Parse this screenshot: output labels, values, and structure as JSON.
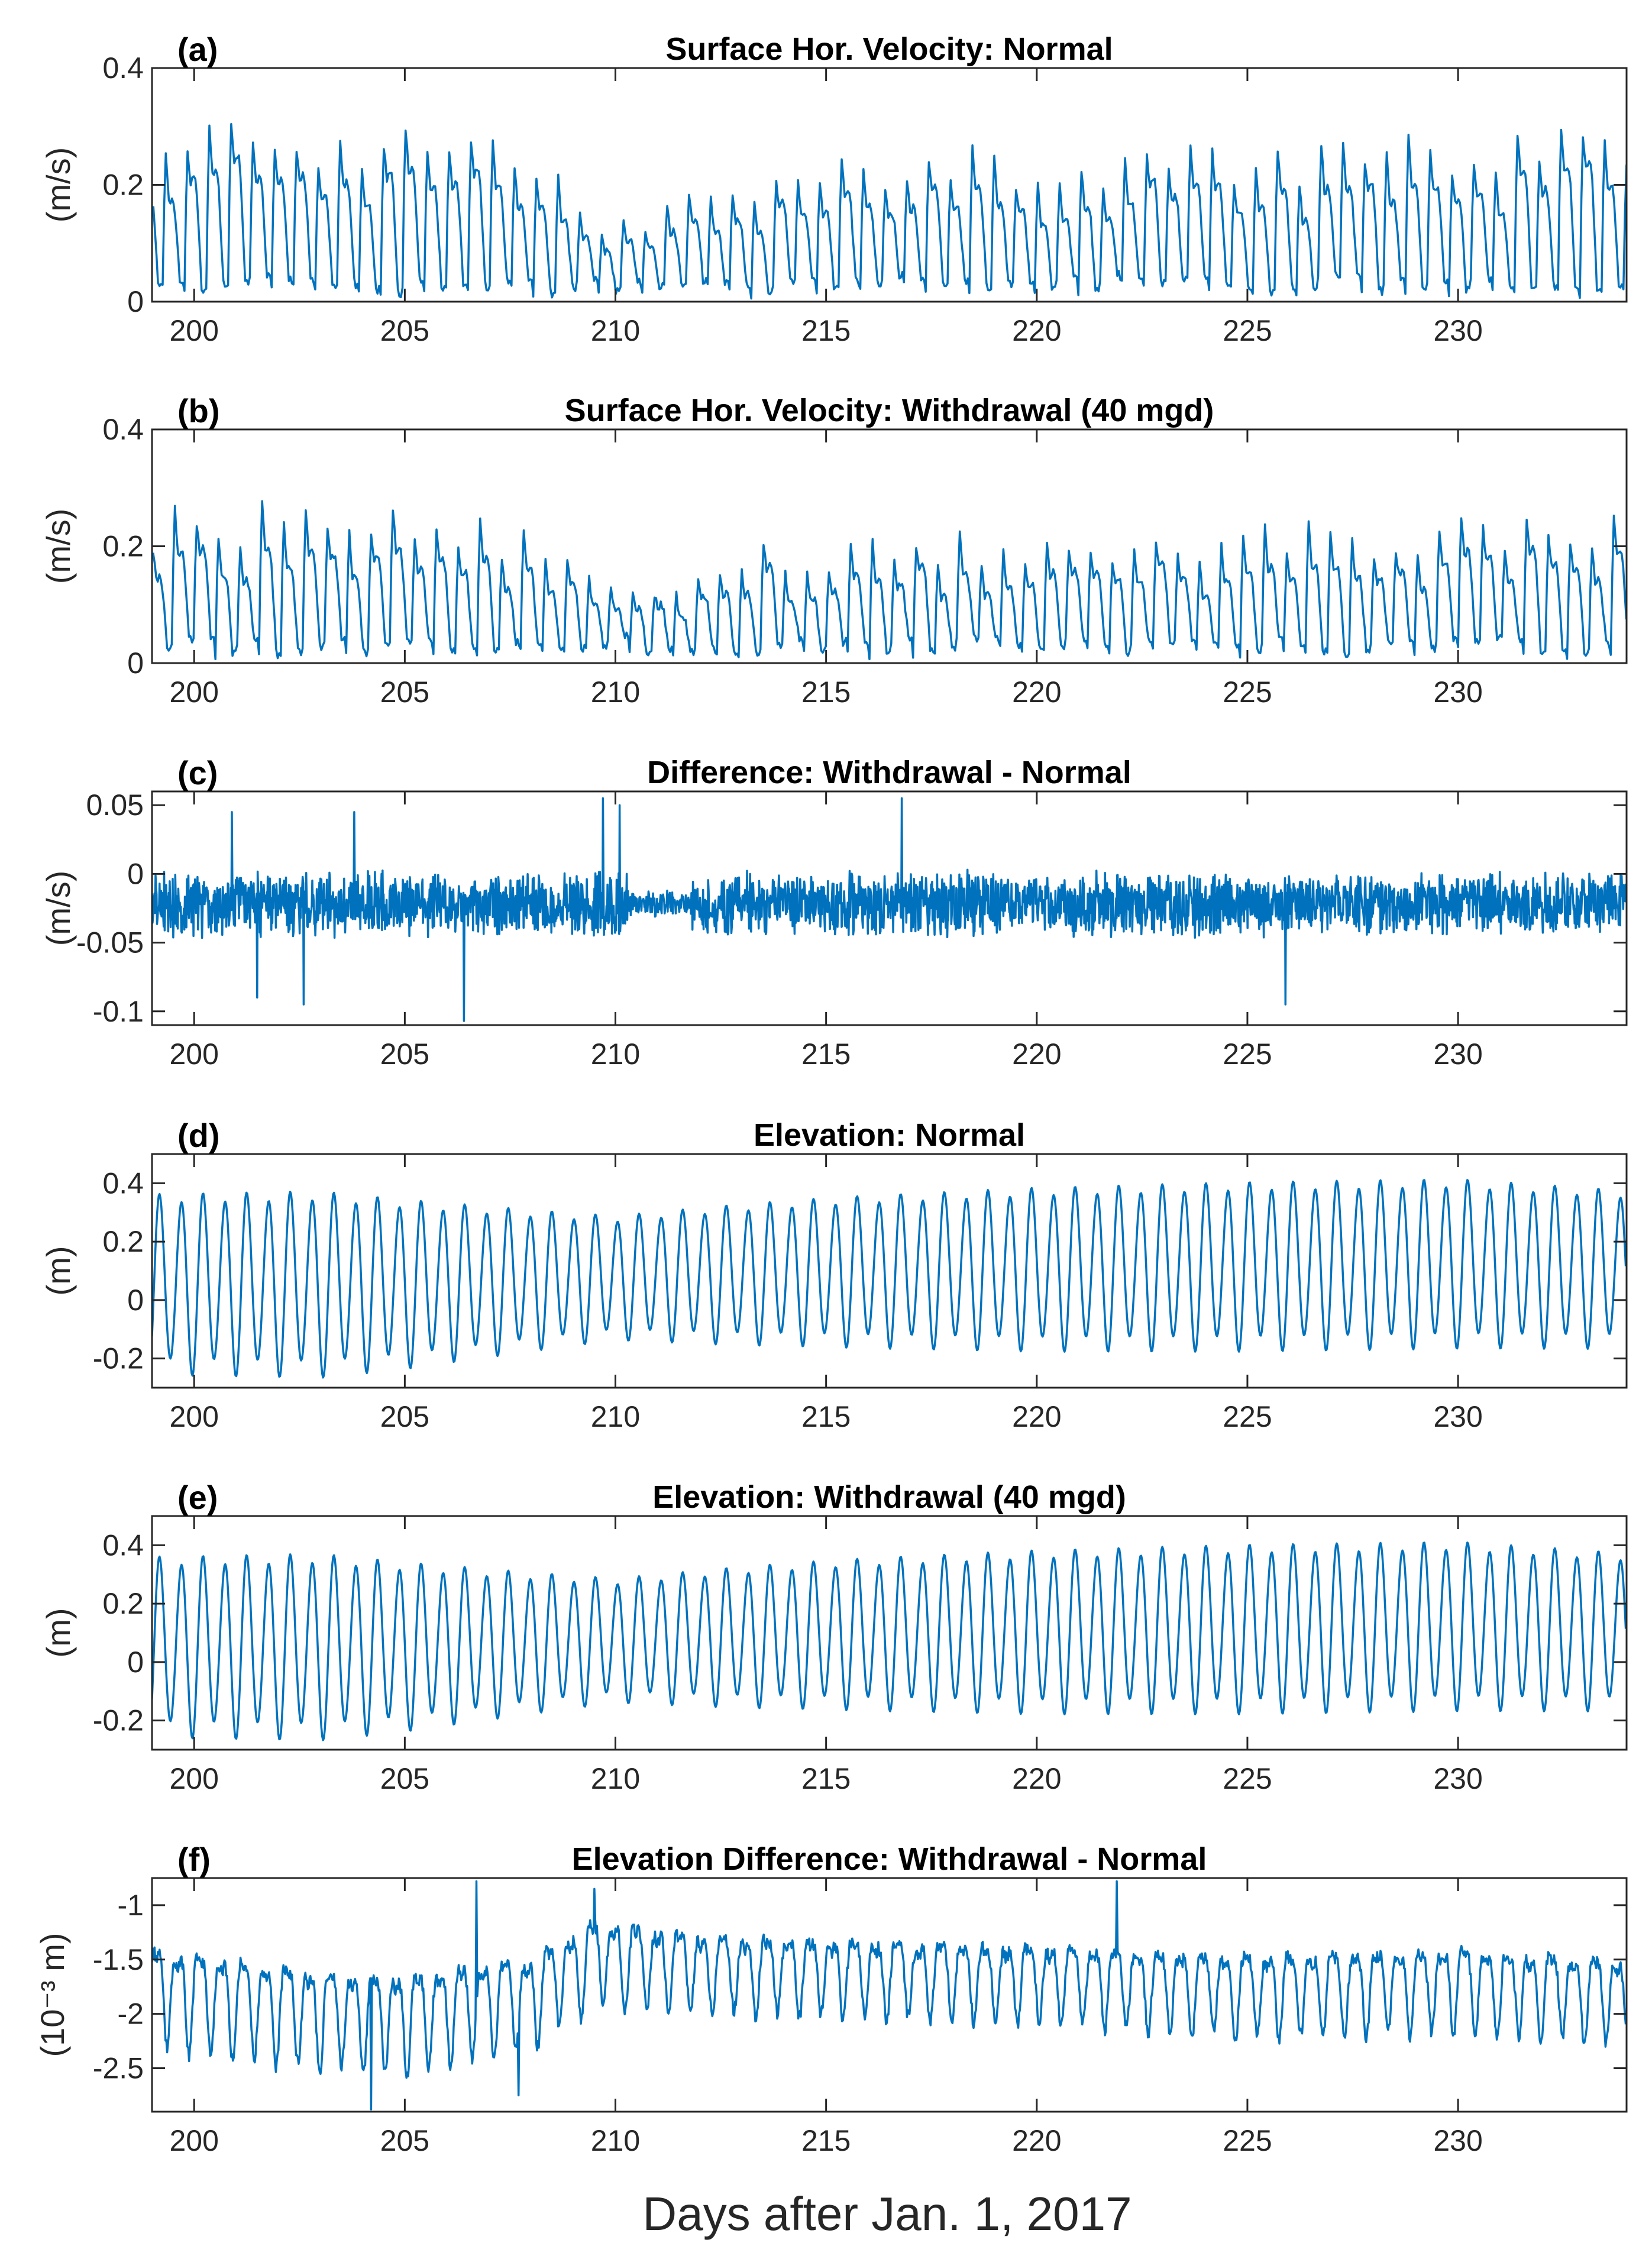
{
  "figure": {
    "xlabel": "Days after Jan. 1, 2017"
  },
  "chart_data": [
    {
      "type": "line",
      "panel": "(a)",
      "title": "Surface Hor. Velocity: Normal",
      "ylabel": "(m/s)",
      "xlim": [
        199,
        234
      ],
      "ylim": [
        0,
        0.4
      ],
      "xticks": [
        200,
        205,
        210,
        215,
        220,
        225,
        230
      ],
      "xtick_labels": [
        "200",
        "205",
        "210",
        "215",
        "220",
        "225",
        "230"
      ],
      "yticks": [
        0,
        0.2,
        0.4
      ],
      "ytick_labels": [
        "0",
        "0.2",
        "0.4"
      ],
      "color": "#0072BD",
      "series": [
        {
          "name": "Surface horizontal velocity (normal)",
          "model": "semidiurnal_speed",
          "period_days": 0.5175,
          "baseline": 0.01,
          "peak_envelope": {
            "x": [
              199,
              202,
              205,
              208,
              209.5,
              210,
              211,
              213,
              216,
              220,
              225,
              230,
              234
            ],
            "y": [
              0.25,
              0.28,
              0.27,
              0.24,
              0.18,
              0.12,
              0.15,
              0.2,
              0.24,
              0.24,
              0.24,
              0.26,
              0.27
            ]
          },
          "secondary_peak": 0.7,
          "trough_min": [
            0.01,
            0.04
          ],
          "noise": 0.012,
          "seed": 11
        }
      ]
    },
    {
      "type": "line",
      "panel": "(b)",
      "title": "Surface Hor. Velocity: Withdrawal (40 mgd)",
      "ylabel": "(m/s)",
      "xlim": [
        199,
        234
      ],
      "ylim": [
        0,
        0.4
      ],
      "xticks": [
        200,
        205,
        210,
        215,
        220,
        225,
        230
      ],
      "xtick_labels": [
        "200",
        "205",
        "210",
        "215",
        "220",
        "225",
        "230"
      ],
      "yticks": [
        0,
        0.2,
        0.4
      ],
      "ytick_labels": [
        "0",
        "0.2",
        "0.4"
      ],
      "color": "#0072BD",
      "series": [
        {
          "name": "Surface horizontal velocity (withdrawal 40 mgd)",
          "model": "semidiurnal_speed",
          "period_days": 0.5175,
          "baseline": 0.01,
          "peak_envelope": {
            "x": [
              199,
              202,
              205,
              208,
              209.5,
              210,
              211,
              213,
              216,
              220,
              225,
              230,
              234
            ],
            "y": [
              0.23,
              0.26,
              0.25,
              0.21,
              0.16,
              0.11,
              0.13,
              0.17,
              0.21,
              0.21,
              0.21,
              0.23,
              0.25
            ]
          },
          "secondary_peak": 0.7,
          "trough_min": [
            0.01,
            0.04
          ],
          "noise": 0.012,
          "seed": 23
        }
      ]
    },
    {
      "type": "line",
      "panel": "(c)",
      "title": "Difference: Withdrawal - Normal",
      "ylabel": "(m/s)",
      "xlim": [
        199,
        234
      ],
      "ylim": [
        -0.11,
        0.06
      ],
      "xticks": [
        200,
        205,
        210,
        215,
        220,
        225,
        230
      ],
      "xtick_labels": [
        "200",
        "205",
        "210",
        "215",
        "220",
        "225",
        "230"
      ],
      "yticks": [
        -0.1,
        -0.05,
        0,
        0.05
      ],
      "ytick_labels": [
        "-0.1",
        "-0.05",
        "0",
        "0.05"
      ],
      "color": "#0072BD",
      "series": [
        {
          "name": "Velocity difference",
          "model": "noise",
          "mean": -0.022,
          "amplitude": 0.018,
          "calm_interval": [
            210.3,
            211.8
          ],
          "calm_amplitude": 0.008,
          "spikes": [
            {
              "x": 209.7,
              "y": 0.055
            },
            {
              "x": 210.1,
              "y": 0.05
            },
            {
              "x": 216.8,
              "y": 0.055
            },
            {
              "x": 206.4,
              "y": -0.107
            },
            {
              "x": 201.5,
              "y": -0.09
            },
            {
              "x": 202.6,
              "y": -0.095
            },
            {
              "x": 225.9,
              "y": -0.095
            },
            {
              "x": 203.8,
              "y": 0.045
            },
            {
              "x": 200.9,
              "y": 0.045
            }
          ],
          "seed": 37
        }
      ]
    },
    {
      "type": "line",
      "panel": "(d)",
      "title": "Elevation: Normal",
      "ylabel": "(m)",
      "xlim": [
        199,
        234
      ],
      "ylim": [
        -0.3,
        0.5
      ],
      "xticks": [
        200,
        205,
        210,
        215,
        220,
        225,
        230
      ],
      "xtick_labels": [
        "200",
        "205",
        "210",
        "215",
        "220",
        "225",
        "230"
      ],
      "yticks": [
        -0.2,
        0,
        0.2,
        0.4
      ],
      "ytick_labels": [
        "-0.2",
        "0",
        "0.2",
        "0.4"
      ],
      "color": "#0072BD",
      "series": [
        {
          "name": "Water surface elevation (normal)",
          "model": "tide",
          "period_days": 0.5175,
          "mean": {
            "x": [
              199,
              205,
              210,
              215,
              220,
              225,
              230,
              234
            ],
            "y": [
              0.06,
              0.06,
              0.08,
              0.1,
              0.11,
              0.12,
              0.13,
              0.11
            ]
          },
          "amplitude": {
            "x": [
              199,
              203,
              205,
              208,
              210,
              213,
              216,
              220,
              225,
              230,
              234
            ],
            "y": [
              0.32,
              0.33,
              0.3,
              0.25,
              0.22,
              0.25,
              0.27,
              0.29,
              0.3,
              0.3,
              0.28
            ]
          },
          "phase_days": 0.18,
          "seed": 41
        }
      ]
    },
    {
      "type": "line",
      "panel": "(e)",
      "title": "Elevation: Withdrawal (40 mgd)",
      "ylabel": "(m)",
      "xlim": [
        199,
        234
      ],
      "ylim": [
        -0.3,
        0.5
      ],
      "xticks": [
        200,
        205,
        210,
        215,
        220,
        225,
        230
      ],
      "xtick_labels": [
        "200",
        "205",
        "210",
        "215",
        "220",
        "225",
        "230"
      ],
      "yticks": [
        -0.2,
        0,
        0.2,
        0.4
      ],
      "ytick_labels": [
        "-0.2",
        "0",
        "0.2",
        "0.4"
      ],
      "color": "#0072BD",
      "series": [
        {
          "name": "Water surface elevation (withdrawal 40 mgd)",
          "model": "tide",
          "period_days": 0.5175,
          "mean": {
            "x": [
              199,
              205,
              210,
              215,
              220,
              225,
              230,
              234
            ],
            "y": [
              0.058,
              0.058,
              0.078,
              0.098,
              0.108,
              0.118,
              0.128,
              0.108
            ]
          },
          "amplitude": {
            "x": [
              199,
              203,
              205,
              208,
              210,
              213,
              216,
              220,
              225,
              230,
              234
            ],
            "y": [
              0.32,
              0.33,
              0.3,
              0.25,
              0.22,
              0.25,
              0.27,
              0.29,
              0.3,
              0.3,
              0.28
            ]
          },
          "phase_days": 0.18,
          "seed": 43
        }
      ]
    },
    {
      "type": "line",
      "panel": "(f)",
      "title": "Elevation Difference: Withdrawal - Normal",
      "ylabel": "(10⁻³ m)",
      "xlim": [
        199,
        234
      ],
      "ylim": [
        -2.9,
        -0.75
      ],
      "xticks": [
        200,
        205,
        210,
        215,
        220,
        225,
        230
      ],
      "xtick_labels": [
        "200",
        "205",
        "210",
        "215",
        "220",
        "225",
        "230"
      ],
      "yticks": [
        -2.5,
        -2,
        -1.5,
        -1
      ],
      "ytick_labels": [
        "-2.5",
        "-2",
        "-1.5",
        "-1"
      ],
      "color": "#0072BD",
      "series": [
        {
          "name": "Elevation difference",
          "model": "tide",
          "period_days": 0.5175,
          "mean": {
            "x": [
              199,
              203,
              205,
              208,
              209.5,
              212,
              216,
              220,
              225,
              230,
              234
            ],
            "y": [
              -1.75,
              -1.95,
              -2.0,
              -1.8,
              -1.45,
              -1.55,
              -1.6,
              -1.65,
              -1.75,
              -1.7,
              -1.8
            ]
          },
          "amplitude": {
            "x": [
              199,
              205,
              209,
              213,
              220,
              225,
              230,
              234
            ],
            "y": [
              0.45,
              0.45,
              0.4,
              0.35,
              0.35,
              0.38,
              0.38,
              0.4
            ]
          },
          "phase_days": 0.1,
          "harmonic": 0.35,
          "noise": 0.12,
          "spikes": [
            {
              "x": 204.2,
              "y": -2.88
            },
            {
              "x": 206.7,
              "y": -0.78
            },
            {
              "x": 209.5,
              "y": -0.85
            },
            {
              "x": 207.7,
              "y": -2.75
            },
            {
              "x": 221.9,
              "y": -0.78
            }
          ],
          "seed": 53
        }
      ]
    }
  ]
}
